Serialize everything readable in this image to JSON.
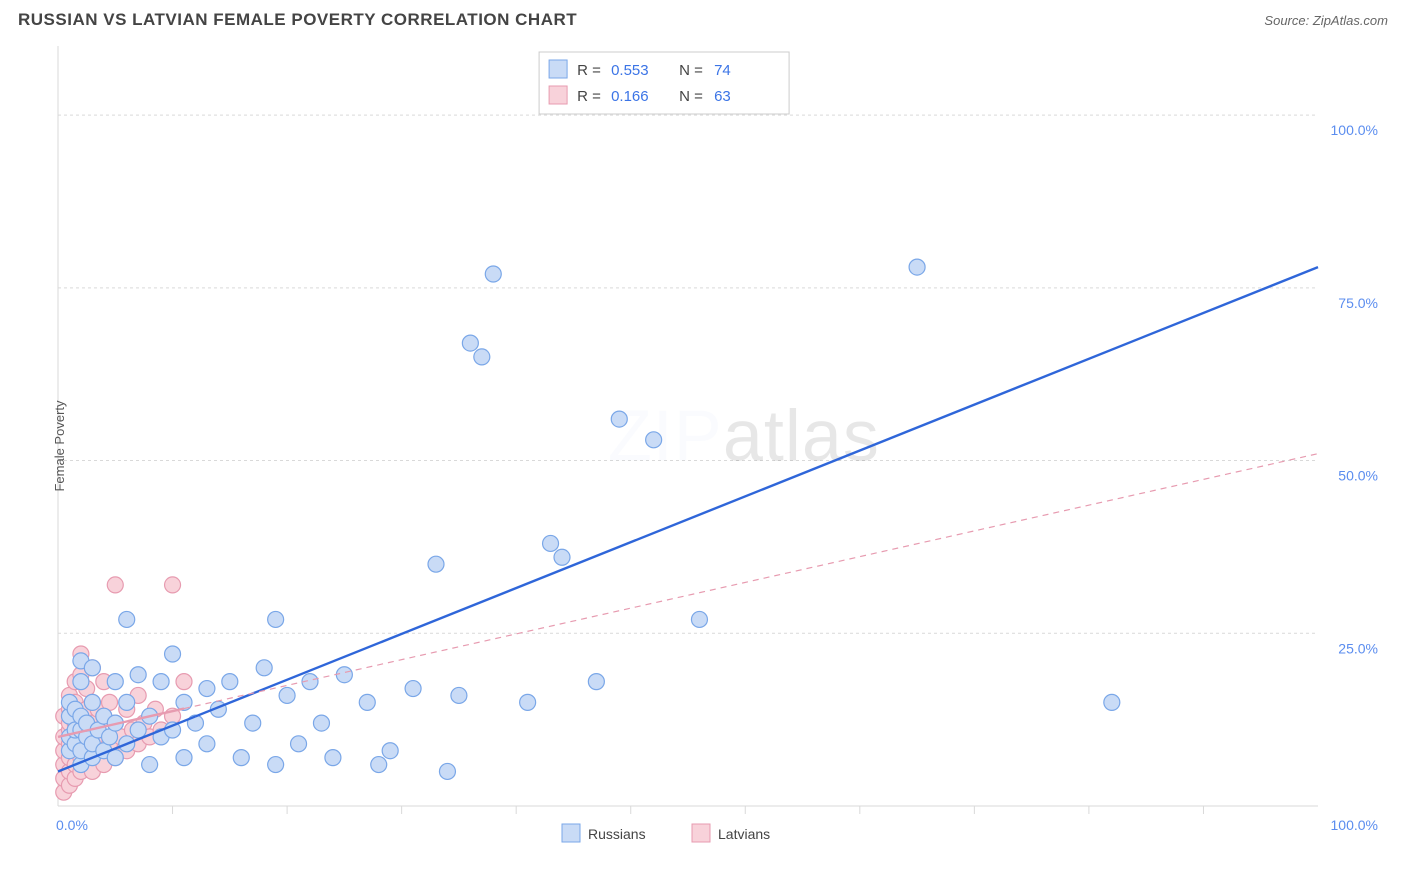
{
  "title": "RUSSIAN VS LATVIAN FEMALE POVERTY CORRELATION CHART",
  "source_label": "Source:",
  "source_value": "ZipAtlas.com",
  "ylabel": "Female Poverty",
  "watermark_a": "ZIP",
  "watermark_b": "atlas",
  "chart": {
    "type": "scatter",
    "xlim": [
      0,
      110
    ],
    "ylim": [
      0,
      110
    ],
    "y_ticks": [
      25,
      50,
      75,
      100
    ],
    "y_tick_labels": [
      "25.0%",
      "50.0%",
      "75.0%",
      "100.0%"
    ],
    "x_tick_labels": [
      "0.0%",
      "100.0%"
    ],
    "x_minor_ticks": [
      10,
      20,
      30,
      40,
      50,
      60,
      70,
      80,
      90,
      100
    ],
    "grid_color": "#d9d9d9",
    "bg_color": "#ffffff",
    "axis_label_color": "#5b8def",
    "series": [
      {
        "name": "Russians",
        "fill": "#c9dbf6",
        "stroke": "#7aa7e8",
        "marker_r": 8,
        "r_value": "0.553",
        "n_value": "74",
        "trend": {
          "x1": 0,
          "y1": 5,
          "x2": 110,
          "y2": 78,
          "color": "#2f66d9",
          "solid_until_x": 12
        },
        "points": [
          [
            1,
            8
          ],
          [
            1,
            10
          ],
          [
            1,
            13
          ],
          [
            1,
            15
          ],
          [
            1.5,
            9
          ],
          [
            1.5,
            11
          ],
          [
            1.5,
            14
          ],
          [
            2,
            6
          ],
          [
            2,
            8
          ],
          [
            2,
            11
          ],
          [
            2,
            13
          ],
          [
            2,
            18
          ],
          [
            2,
            21
          ],
          [
            2.5,
            10
          ],
          [
            2.5,
            12
          ],
          [
            3,
            7
          ],
          [
            3,
            9
          ],
          [
            3,
            15
          ],
          [
            3,
            20
          ],
          [
            3.5,
            11
          ],
          [
            4,
            8
          ],
          [
            4,
            13
          ],
          [
            4.5,
            10
          ],
          [
            5,
            7
          ],
          [
            5,
            12
          ],
          [
            5,
            18
          ],
          [
            6,
            9
          ],
          [
            6,
            15
          ],
          [
            6,
            27
          ],
          [
            7,
            11
          ],
          [
            7,
            19
          ],
          [
            8,
            6
          ],
          [
            8,
            13
          ],
          [
            9,
            10
          ],
          [
            9,
            18
          ],
          [
            10,
            11
          ],
          [
            10,
            22
          ],
          [
            11,
            7
          ],
          [
            11,
            15
          ],
          [
            12,
            12
          ],
          [
            13,
            9
          ],
          [
            13,
            17
          ],
          [
            14,
            14
          ],
          [
            15,
            18
          ],
          [
            16,
            7
          ],
          [
            17,
            12
          ],
          [
            18,
            20
          ],
          [
            19,
            6
          ],
          [
            19,
            27
          ],
          [
            20,
            16
          ],
          [
            21,
            9
          ],
          [
            22,
            18
          ],
          [
            23,
            12
          ],
          [
            24,
            7
          ],
          [
            25,
            19
          ],
          [
            27,
            15
          ],
          [
            29,
            8
          ],
          [
            31,
            17
          ],
          [
            33,
            35
          ],
          [
            35,
            16
          ],
          [
            36,
            67
          ],
          [
            37,
            65
          ],
          [
            38,
            77
          ],
          [
            41,
            15
          ],
          [
            43,
            38
          ],
          [
            44,
            36
          ],
          [
            47,
            18
          ],
          [
            49,
            56
          ],
          [
            52,
            53
          ],
          [
            56,
            27
          ],
          [
            75,
            78
          ],
          [
            92,
            15
          ],
          [
            34,
            5
          ],
          [
            28,
            6
          ]
        ]
      },
      {
        "name": "Latvians",
        "fill": "#f8d2da",
        "stroke": "#e79bb0",
        "marker_r": 8,
        "r_value": "0.166",
        "n_value": "63",
        "trend": {
          "x1": 0,
          "y1": 10,
          "x2": 110,
          "y2": 51,
          "color": "#e79bb0",
          "solid_until_x": 11
        },
        "points": [
          [
            0.5,
            2
          ],
          [
            0.5,
            4
          ],
          [
            0.5,
            6
          ],
          [
            0.5,
            8
          ],
          [
            0.5,
            10
          ],
          [
            0.5,
            13
          ],
          [
            1,
            3
          ],
          [
            1,
            5
          ],
          [
            1,
            7
          ],
          [
            1,
            9
          ],
          [
            1,
            11
          ],
          [
            1,
            12
          ],
          [
            1,
            14
          ],
          [
            1,
            16
          ],
          [
            1.5,
            4
          ],
          [
            1.5,
            6
          ],
          [
            1.5,
            8
          ],
          [
            1.5,
            10
          ],
          [
            1.5,
            12
          ],
          [
            1.5,
            15
          ],
          [
            1.5,
            18
          ],
          [
            2,
            5
          ],
          [
            2,
            7
          ],
          [
            2,
            9
          ],
          [
            2,
            11
          ],
          [
            2,
            13
          ],
          [
            2,
            19
          ],
          [
            2,
            22
          ],
          [
            2.5,
            6
          ],
          [
            2.5,
            8
          ],
          [
            2.5,
            10
          ],
          [
            2.5,
            14
          ],
          [
            2.5,
            17
          ],
          [
            3,
            5
          ],
          [
            3,
            9
          ],
          [
            3,
            12
          ],
          [
            3,
            15
          ],
          [
            3,
            20
          ],
          [
            3.5,
            8
          ],
          [
            3.5,
            11
          ],
          [
            3.5,
            14
          ],
          [
            4,
            6
          ],
          [
            4,
            10
          ],
          [
            4,
            13
          ],
          [
            4,
            18
          ],
          [
            4.5,
            9
          ],
          [
            4.5,
            15
          ],
          [
            5,
            7
          ],
          [
            5,
            12
          ],
          [
            5,
            32
          ],
          [
            5.5,
            10
          ],
          [
            6,
            8
          ],
          [
            6,
            14
          ],
          [
            6.5,
            11
          ],
          [
            7,
            9
          ],
          [
            7,
            16
          ],
          [
            7.5,
            12
          ],
          [
            8,
            10
          ],
          [
            8.5,
            14
          ],
          [
            9,
            11
          ],
          [
            10,
            13
          ],
          [
            10,
            32
          ],
          [
            11,
            18
          ]
        ]
      }
    ],
    "legend_top": {
      "r_label": "R =",
      "n_label": "N ="
    },
    "legend_bottom": [
      {
        "label": "Russians",
        "swatch_fill": "#c9dbf6",
        "swatch_stroke": "#7aa7e8"
      },
      {
        "label": "Latvians",
        "swatch_fill": "#f8d2da",
        "swatch_stroke": "#e79bb0"
      }
    ]
  }
}
